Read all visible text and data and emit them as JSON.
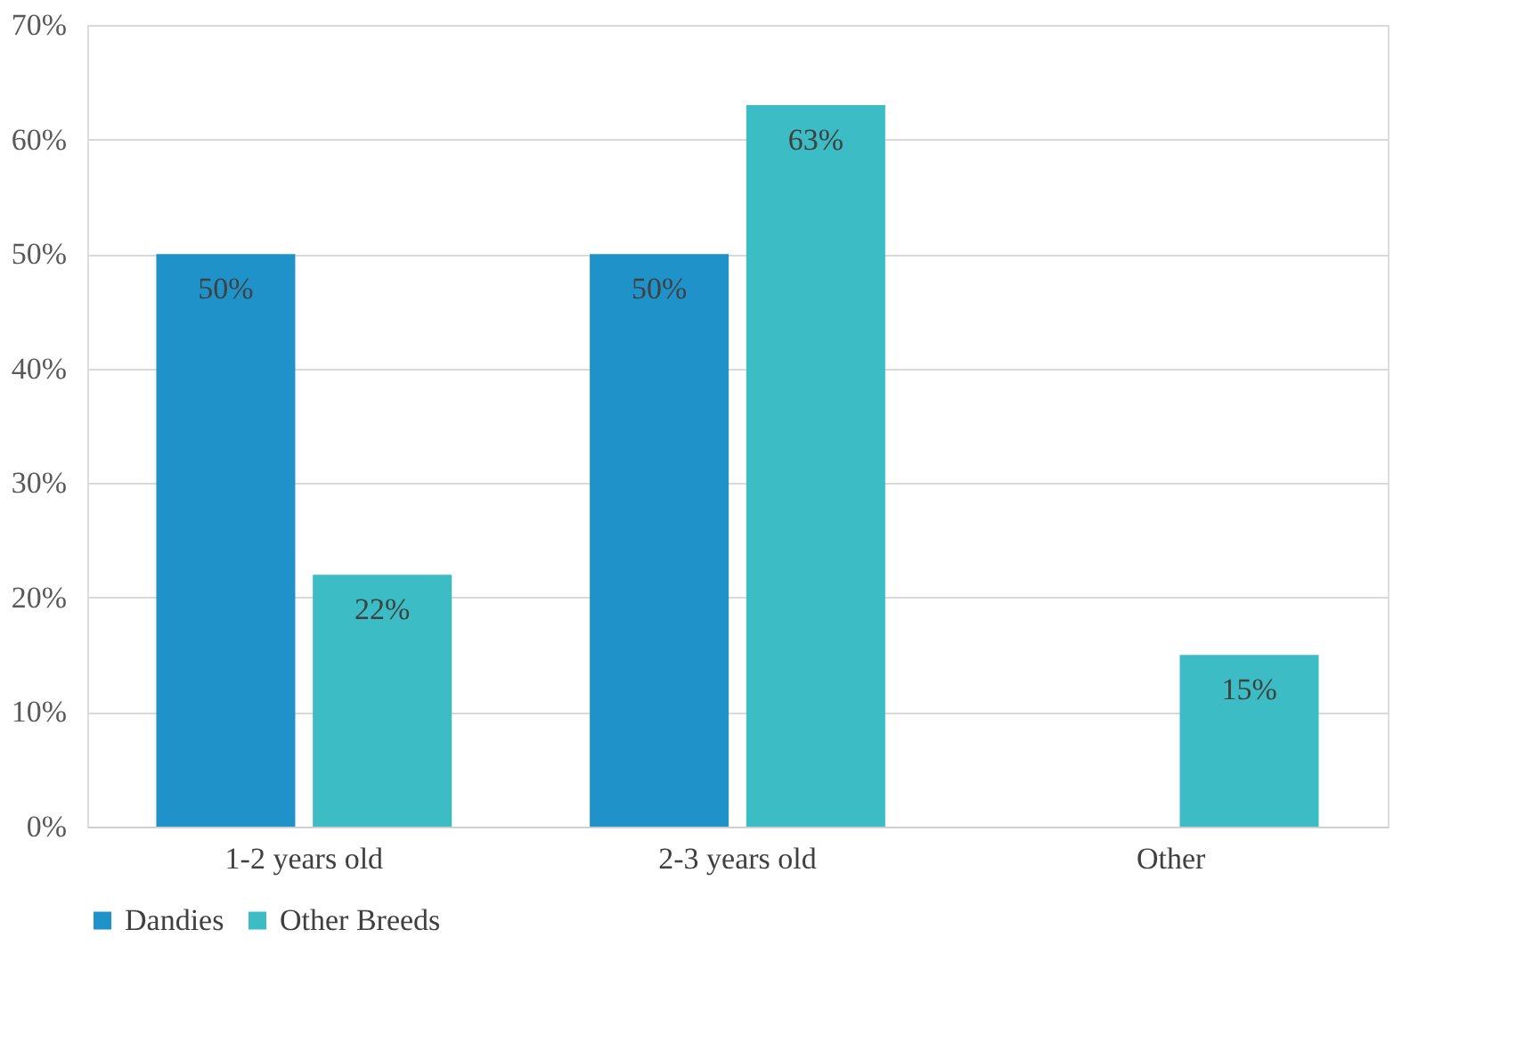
{
  "chart_data": {
    "type": "bar",
    "categories": [
      "1-2 years old",
      "2-3 years old",
      "Other"
    ],
    "series": [
      {
        "name": "Dandies",
        "color": "#1f93c9",
        "values": [
          50,
          50,
          null
        ],
        "value_labels": [
          "50%",
          "50%",
          null
        ]
      },
      {
        "name": "Other Breeds",
        "color": "#3cbcc4",
        "values": [
          22,
          63,
          15
        ],
        "value_labels": [
          "22%",
          "63%",
          "15%"
        ]
      }
    ],
    "ylim": [
      0,
      70
    ],
    "yticks": [
      {
        "value": 0,
        "label": "0%"
      },
      {
        "value": 10,
        "label": "10%"
      },
      {
        "value": 20,
        "label": "20%"
      },
      {
        "value": 30,
        "label": "30%"
      },
      {
        "value": 40,
        "label": "40%"
      },
      {
        "value": 50,
        "label": "50%"
      },
      {
        "value": 60,
        "label": "60%"
      },
      {
        "value": 70,
        "label": "70%"
      }
    ],
    "grid": "y",
    "legend": "bottom"
  }
}
